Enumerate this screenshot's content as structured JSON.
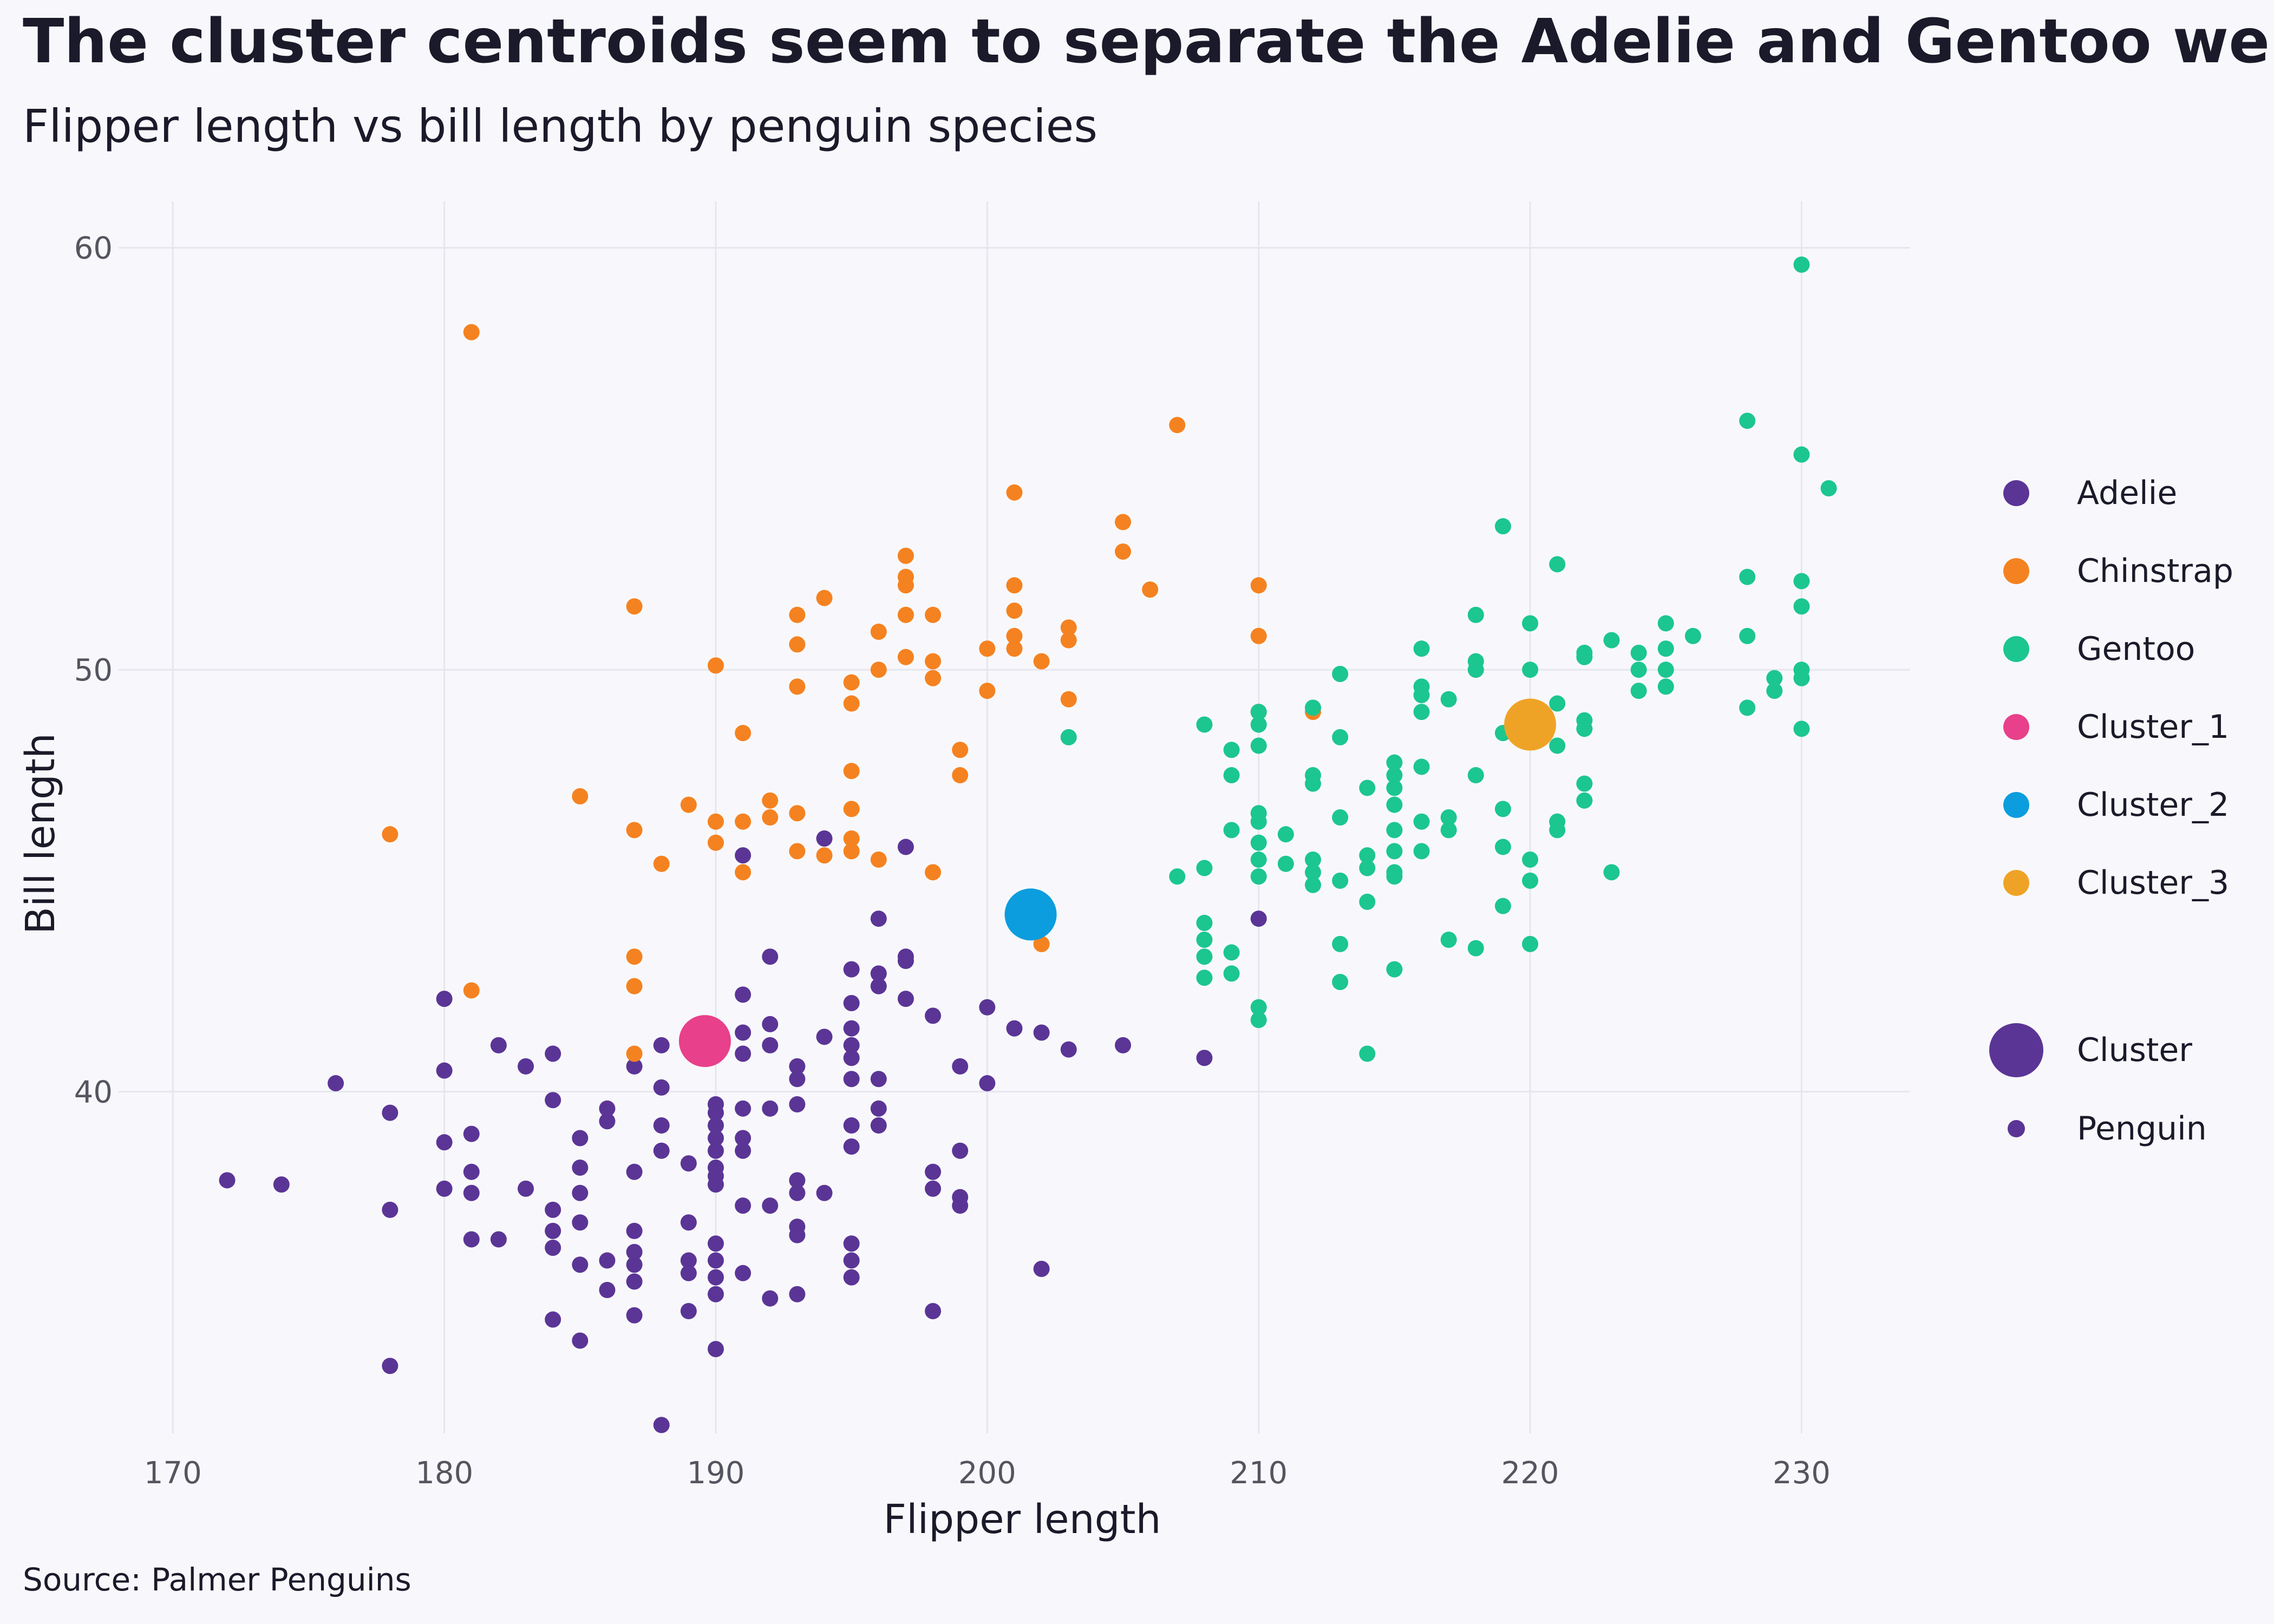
{
  "chart_data": {
    "type": "scatter",
    "title": "The cluster centroids seem to separate the Adelie and Gentoo well",
    "subtitle": "Flipper length vs bill length by penguin species",
    "xlabel": "Flipper length",
    "ylabel": "Bill length",
    "source": "Source: Palmer Penguins",
    "xlim": [
      168,
      234
    ],
    "ylim": [
      31.9,
      61.1
    ],
    "x_ticks": [
      "170",
      "180",
      "190",
      "200",
      "210",
      "220",
      "230"
    ],
    "y_ticks": [
      "40",
      "50",
      "60"
    ],
    "grid": true,
    "legend_position": "right",
    "colors": {
      "Adelie": "#5b3596",
      "Chinstrap": "#f58220",
      "Gentoo": "#1cc68f",
      "Cluster_1": "#e8408a",
      "Cluster_2": "#0b9ddd",
      "Cluster_3": "#efa326"
    },
    "legend_color": [
      "Adelie",
      "Chinstrap",
      "Gentoo",
      "Cluster_1",
      "Cluster_2",
      "Cluster_3"
    ],
    "legend_size": [
      "Cluster",
      "Penguin"
    ],
    "series": [
      {
        "name": "Adelie",
        "points": [
          [
            172,
            37.9
          ],
          [
            174,
            37.8
          ],
          [
            176,
            40.2
          ],
          [
            178,
            39.5
          ],
          [
            178,
            37.2
          ],
          [
            178,
            33.5
          ],
          [
            180,
            42.2
          ],
          [
            180,
            40.5
          ],
          [
            180,
            38.8
          ],
          [
            180,
            37.7
          ],
          [
            181,
            39.0
          ],
          [
            181,
            38.1
          ],
          [
            181,
            37.6
          ],
          [
            181,
            36.5
          ],
          [
            182,
            41.1
          ],
          [
            182,
            36.5
          ],
          [
            183,
            40.6
          ],
          [
            183,
            37.7
          ],
          [
            184,
            40.9
          ],
          [
            184,
            39.8
          ],
          [
            184,
            37.2
          ],
          [
            184,
            36.7
          ],
          [
            184,
            36.3
          ],
          [
            184,
            34.6
          ],
          [
            185,
            38.9
          ],
          [
            185,
            38.2
          ],
          [
            185,
            37.6
          ],
          [
            185,
            36.9
          ],
          [
            185,
            35.9
          ],
          [
            185,
            34.1
          ],
          [
            186,
            39.6
          ],
          [
            186,
            39.3
          ],
          [
            186,
            36.0
          ],
          [
            186,
            35.3
          ],
          [
            187,
            40.6
          ],
          [
            187,
            38.1
          ],
          [
            187,
            36.7
          ],
          [
            187,
            36.2
          ],
          [
            187,
            35.5
          ],
          [
            187,
            35.9
          ],
          [
            187,
            34.7
          ],
          [
            188,
            41.1
          ],
          [
            188,
            40.1
          ],
          [
            188,
            39.2
          ],
          [
            188,
            38.6
          ],
          [
            188,
            32.1
          ],
          [
            189,
            38.3
          ],
          [
            189,
            36.9
          ],
          [
            189,
            36.0
          ],
          [
            189,
            35.7
          ],
          [
            189,
            34.8
          ],
          [
            190,
            39.7
          ],
          [
            190,
            39.5
          ],
          [
            190,
            39.2
          ],
          [
            190,
            38.9
          ],
          [
            190,
            38.6
          ],
          [
            190,
            38.2
          ],
          [
            190,
            38.0
          ],
          [
            190,
            37.8
          ],
          [
            190,
            36.4
          ],
          [
            190,
            36.0
          ],
          [
            190,
            35.6
          ],
          [
            190,
            35.2
          ],
          [
            190,
            33.9
          ],
          [
            191,
            45.6
          ],
          [
            191,
            42.3
          ],
          [
            191,
            41.4
          ],
          [
            191,
            40.9
          ],
          [
            191,
            39.6
          ],
          [
            191,
            38.9
          ],
          [
            191,
            38.6
          ],
          [
            191,
            37.3
          ],
          [
            191,
            35.7
          ],
          [
            192,
            43.2
          ],
          [
            192,
            41.6
          ],
          [
            192,
            41.1
          ],
          [
            192,
            39.6
          ],
          [
            192,
            37.3
          ],
          [
            192,
            35.1
          ],
          [
            193,
            40.6
          ],
          [
            193,
            40.3
          ],
          [
            193,
            39.7
          ],
          [
            193,
            37.9
          ],
          [
            193,
            37.6
          ],
          [
            193,
            36.8
          ],
          [
            193,
            36.6
          ],
          [
            193,
            35.2
          ],
          [
            194,
            46.0
          ],
          [
            194,
            41.3
          ],
          [
            194,
            37.6
          ],
          [
            195,
            42.9
          ],
          [
            195,
            42.1
          ],
          [
            195,
            41.5
          ],
          [
            195,
            41.1
          ],
          [
            195,
            40.8
          ],
          [
            195,
            40.3
          ],
          [
            195,
            39.2
          ],
          [
            195,
            38.7
          ],
          [
            195,
            36.4
          ],
          [
            195,
            36.0
          ],
          [
            195,
            35.6
          ],
          [
            196,
            44.1
          ],
          [
            196,
            42.8
          ],
          [
            196,
            42.5
          ],
          [
            196,
            40.3
          ],
          [
            196,
            39.6
          ],
          [
            196,
            39.2
          ],
          [
            197,
            45.8
          ],
          [
            197,
            43.2
          ],
          [
            197,
            43.1
          ],
          [
            197,
            42.2
          ],
          [
            198,
            41.8
          ],
          [
            198,
            38.1
          ],
          [
            198,
            37.7
          ],
          [
            198,
            34.8
          ],
          [
            199,
            40.6
          ],
          [
            199,
            38.6
          ],
          [
            199,
            37.5
          ],
          [
            199,
            37.3
          ],
          [
            200,
            42.0
          ],
          [
            200,
            40.2
          ],
          [
            201,
            41.5
          ],
          [
            202,
            41.4
          ],
          [
            202,
            35.8
          ],
          [
            203,
            41.0
          ],
          [
            205,
            41.1
          ],
          [
            208,
            40.8
          ],
          [
            210,
            44.1
          ]
        ]
      },
      {
        "name": "Chinstrap",
        "points": [
          [
            178,
            46.1
          ],
          [
            181,
            58.0
          ],
          [
            181,
            42.4
          ],
          [
            185,
            47.0
          ],
          [
            187,
            51.5
          ],
          [
            187,
            46.2
          ],
          [
            187,
            43.2
          ],
          [
            187,
            42.5
          ],
          [
            187,
            40.9
          ],
          [
            188,
            45.4
          ],
          [
            189,
            46.8
          ],
          [
            190,
            50.1
          ],
          [
            190,
            46.4
          ],
          [
            190,
            45.9
          ],
          [
            191,
            48.5
          ],
          [
            191,
            46.4
          ],
          [
            191,
            45.2
          ],
          [
            192,
            46.9
          ],
          [
            192,
            46.5
          ],
          [
            193,
            51.3
          ],
          [
            193,
            50.6
          ],
          [
            193,
            49.6
          ],
          [
            193,
            46.6
          ],
          [
            193,
            45.7
          ],
          [
            194,
            51.7
          ],
          [
            194,
            45.6
          ],
          [
            195,
            49.7
          ],
          [
            195,
            49.2
          ],
          [
            195,
            47.6
          ],
          [
            195,
            46.7
          ],
          [
            195,
            46.0
          ],
          [
            195,
            45.7
          ],
          [
            196,
            50.9
          ],
          [
            196,
            50.0
          ],
          [
            196,
            45.5
          ],
          [
            197,
            52.7
          ],
          [
            197,
            52.2
          ],
          [
            197,
            52.0
          ],
          [
            197,
            51.3
          ],
          [
            197,
            50.3
          ],
          [
            198,
            51.3
          ],
          [
            198,
            50.2
          ],
          [
            198,
            49.8
          ],
          [
            198,
            45.2
          ],
          [
            199,
            48.1
          ],
          [
            199,
            47.5
          ],
          [
            200,
            50.5
          ],
          [
            200,
            49.5
          ],
          [
            201,
            54.2
          ],
          [
            201,
            52.0
          ],
          [
            201,
            51.4
          ],
          [
            201,
            50.8
          ],
          [
            201,
            50.5
          ],
          [
            202,
            50.2
          ],
          [
            202,
            43.5
          ],
          [
            203,
            51.0
          ],
          [
            203,
            50.7
          ],
          [
            203,
            49.3
          ],
          [
            205,
            53.5
          ],
          [
            205,
            52.8
          ],
          [
            206,
            51.9
          ],
          [
            207,
            55.8
          ],
          [
            210,
            52.0
          ],
          [
            210,
            50.8
          ],
          [
            210,
            49.0
          ],
          [
            212,
            49.0
          ]
        ]
      },
      {
        "name": "Gentoo",
        "points": [
          [
            203,
            48.4
          ],
          [
            207,
            45.1
          ],
          [
            208,
            48.7
          ],
          [
            208,
            45.3
          ],
          [
            208,
            44.0
          ],
          [
            208,
            43.6
          ],
          [
            208,
            43.2
          ],
          [
            208,
            42.7
          ],
          [
            209,
            48.1
          ],
          [
            209,
            47.5
          ],
          [
            209,
            46.2
          ],
          [
            209,
            43.3
          ],
          [
            209,
            42.8
          ],
          [
            210,
            49.0
          ],
          [
            210,
            48.7
          ],
          [
            210,
            48.2
          ],
          [
            210,
            46.6
          ],
          [
            210,
            46.4
          ],
          [
            210,
            45.9
          ],
          [
            210,
            45.5
          ],
          [
            210,
            45.1
          ],
          [
            210,
            42.0
          ],
          [
            210,
            41.7
          ],
          [
            211,
            46.1
          ],
          [
            211,
            45.4
          ],
          [
            212,
            49.1
          ],
          [
            212,
            47.5
          ],
          [
            212,
            47.3
          ],
          [
            212,
            45.5
          ],
          [
            212,
            45.2
          ],
          [
            212,
            44.9
          ],
          [
            213,
            49.9
          ],
          [
            213,
            48.4
          ],
          [
            213,
            46.5
          ],
          [
            213,
            45.0
          ],
          [
            213,
            43.5
          ],
          [
            213,
            42.6
          ],
          [
            214,
            47.2
          ],
          [
            214,
            45.6
          ],
          [
            214,
            45.3
          ],
          [
            214,
            44.5
          ],
          [
            214,
            40.9
          ],
          [
            215,
            47.8
          ],
          [
            215,
            47.5
          ],
          [
            215,
            47.2
          ],
          [
            215,
            46.8
          ],
          [
            215,
            46.2
          ],
          [
            215,
            45.7
          ],
          [
            215,
            45.2
          ],
          [
            215,
            45.1
          ],
          [
            215,
            42.9
          ],
          [
            216,
            50.5
          ],
          [
            216,
            49.6
          ],
          [
            216,
            49.4
          ],
          [
            216,
            49.0
          ],
          [
            216,
            47.7
          ],
          [
            216,
            46.4
          ],
          [
            216,
            45.7
          ],
          [
            217,
            49.3
          ],
          [
            217,
            46.5
          ],
          [
            217,
            46.2
          ],
          [
            217,
            43.6
          ],
          [
            218,
            51.3
          ],
          [
            218,
            50.2
          ],
          [
            218,
            50.0
          ],
          [
            218,
            47.5
          ],
          [
            218,
            43.4
          ],
          [
            219,
            53.4
          ],
          [
            219,
            48.5
          ],
          [
            219,
            46.7
          ],
          [
            219,
            45.8
          ],
          [
            219,
            44.4
          ],
          [
            220,
            51.1
          ],
          [
            220,
            50.0
          ],
          [
            220,
            45.5
          ],
          [
            220,
            45.0
          ],
          [
            220,
            43.5
          ],
          [
            221,
            52.5
          ],
          [
            221,
            49.2
          ],
          [
            221,
            48.2
          ],
          [
            221,
            46.4
          ],
          [
            221,
            46.2
          ],
          [
            222,
            50.4
          ],
          [
            222,
            50.3
          ],
          [
            222,
            48.8
          ],
          [
            222,
            48.6
          ],
          [
            222,
            47.3
          ],
          [
            222,
            46.9
          ],
          [
            223,
            50.7
          ],
          [
            223,
            45.2
          ],
          [
            224,
            50.4
          ],
          [
            224,
            50.0
          ],
          [
            224,
            49.5
          ],
          [
            225,
            51.1
          ],
          [
            225,
            50.5
          ],
          [
            225,
            50.0
          ],
          [
            225,
            49.6
          ],
          [
            226,
            50.8
          ],
          [
            228,
            55.9
          ],
          [
            228,
            52.2
          ],
          [
            228,
            50.8
          ],
          [
            228,
            49.1
          ],
          [
            229,
            49.8
          ],
          [
            229,
            49.5
          ],
          [
            230,
            59.6
          ],
          [
            230,
            55.1
          ],
          [
            230,
            52.1
          ],
          [
            230,
            51.5
          ],
          [
            230,
            50.0
          ],
          [
            230,
            49.8
          ],
          [
            230,
            48.6
          ],
          [
            231,
            54.3
          ]
        ]
      }
    ],
    "centroids": [
      {
        "name": "Cluster_1",
        "x": 189.6,
        "y": 41.2
      },
      {
        "name": "Cluster_2",
        "x": 201.6,
        "y": 44.2
      },
      {
        "name": "Cluster_3",
        "x": 220.0,
        "y": 48.7
      }
    ]
  }
}
